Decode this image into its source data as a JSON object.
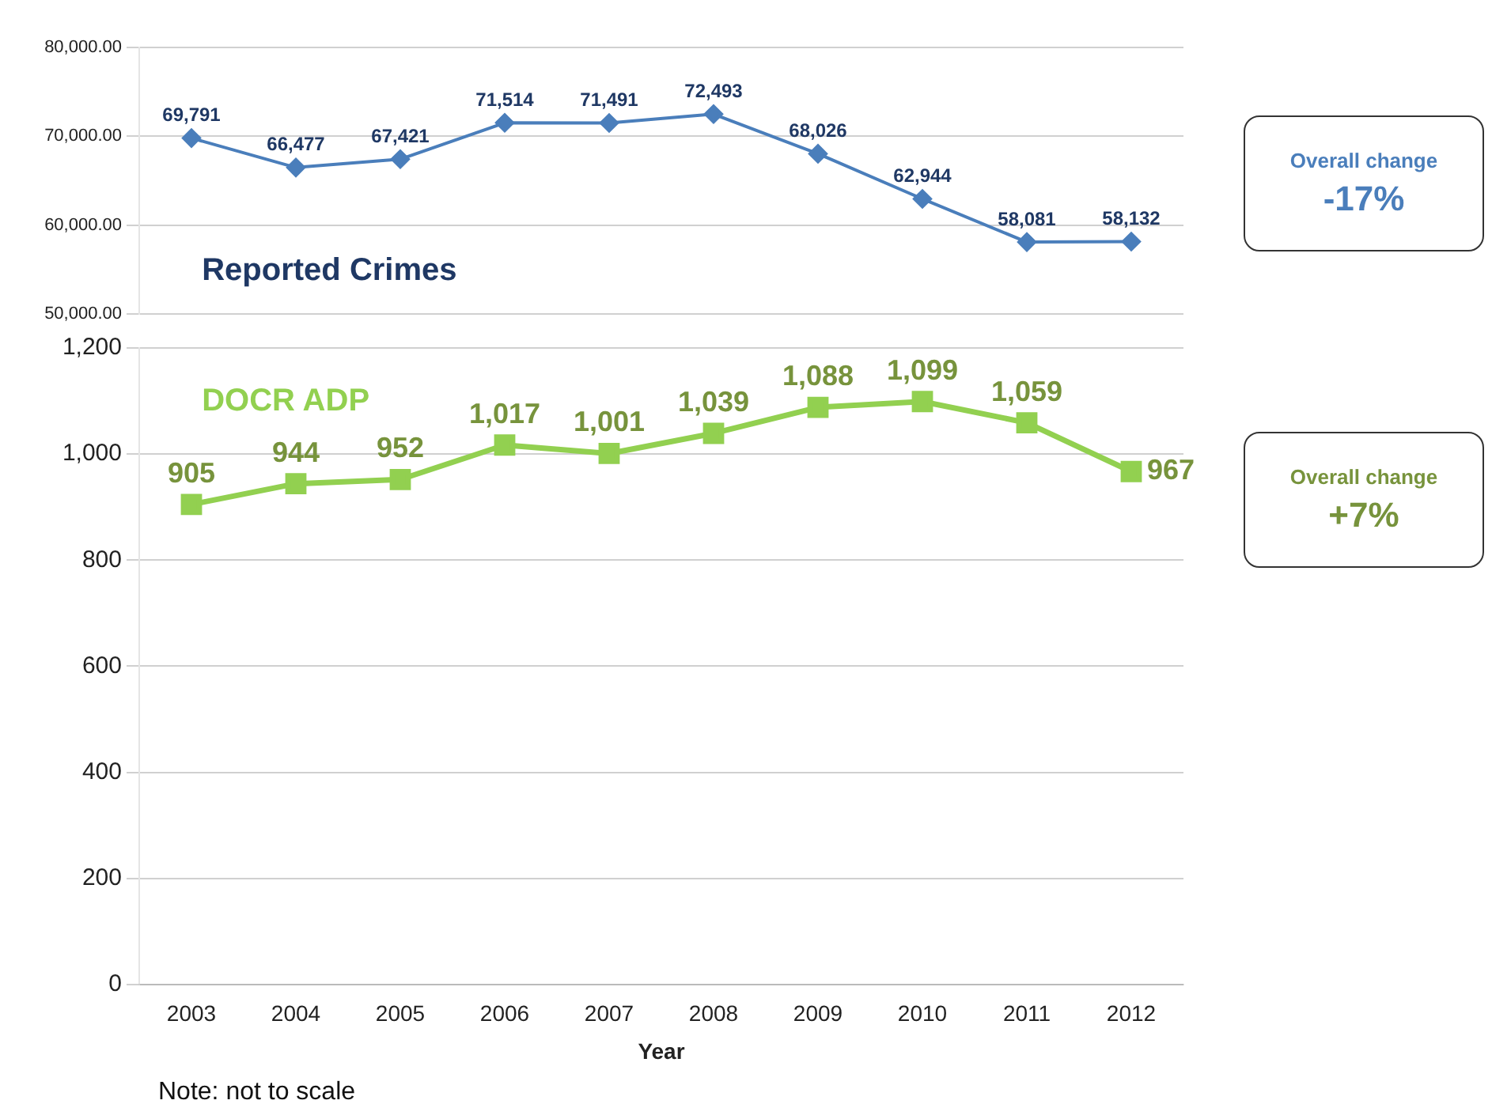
{
  "chart_data": [
    {
      "type": "line",
      "categories": [
        "2003",
        "2004",
        "2005",
        "2006",
        "2007",
        "2008",
        "2009",
        "2010",
        "2011",
        "2012"
      ],
      "series": [
        {
          "name": "Reported Crimes",
          "color": "#4a7ebb",
          "values": [
            69791,
            66477,
            67421,
            71514,
            71491,
            72493,
            68026,
            62944,
            58081,
            58132
          ],
          "value_labels": [
            "69,791",
            "66,477",
            "67,421",
            "71,514",
            "71,491",
            "72,493",
            "68,026",
            "62,944",
            "58,081",
            "58,132"
          ]
        }
      ],
      "ylim": [
        50000,
        80000
      ],
      "yticks": [
        {
          "value": 50000,
          "label": "50,000.00"
        },
        {
          "value": 60000,
          "label": "60,000.00"
        },
        {
          "value": 70000,
          "label": "70,000.00"
        },
        {
          "value": 80000,
          "label": "80,000.00"
        }
      ],
      "grid": "y",
      "marker": "diamond",
      "tick_labels": "y",
      "annotations": [
        "Overall change",
        "-17%"
      ]
    },
    {
      "type": "line",
      "categories": [
        "2003",
        "2004",
        "2005",
        "2006",
        "2007",
        "2008",
        "2009",
        "2010",
        "2011",
        "2012"
      ],
      "xlabel": "Year",
      "series": [
        {
          "name": "DOCR ADP",
          "color": "#92d050",
          "values": [
            905,
            944,
            952,
            1017,
            1001,
            1039,
            1088,
            1099,
            1059,
            967
          ],
          "value_labels": [
            "905",
            "944",
            "952",
            "1,017",
            "1,001",
            "1,039",
            "1,088",
            "1,099",
            "1,059",
            "967"
          ]
        }
      ],
      "ylim": [
        0,
        1200
      ],
      "yticks": [
        0,
        200,
        400,
        600,
        800,
        {
          "value": 1000,
          "label": "1,000"
        },
        {
          "value": 1200,
          "label": "1,200"
        }
      ],
      "grid": "y",
      "marker": "square",
      "annotations": [
        "Overall change",
        "+7%",
        "Note: not to scale"
      ]
    }
  ]
}
